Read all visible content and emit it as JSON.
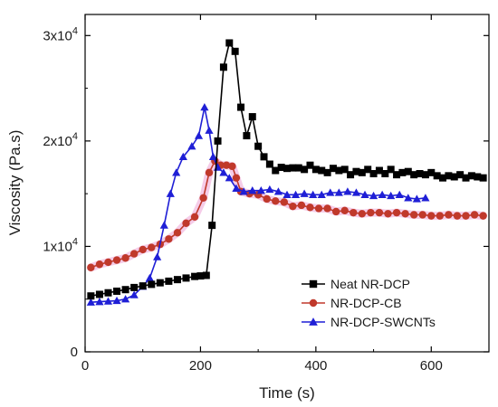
{
  "chart_data": {
    "type": "line",
    "xlabel": "Time (s)",
    "ylabel": "Viscosity (Pa.s)",
    "xlim": [
      0,
      700
    ],
    "ylim": [
      0,
      32000
    ],
    "x_ticks": [
      0,
      200,
      400,
      600
    ],
    "x_tick_labels": [
      "0",
      "200",
      "400",
      "600"
    ],
    "y_ticks": [
      0,
      10000,
      20000,
      30000
    ],
    "y_tick_labels": [
      {
        "base": "0",
        "exp": ""
      },
      {
        "base": "1x10",
        "exp": "4"
      },
      {
        "base": "2x10",
        "exp": "4"
      },
      {
        "base": "3x10",
        "exp": "4"
      }
    ],
    "grid": false,
    "legend_position": "bottom-right",
    "series": [
      {
        "name": "Neat NR-DCP",
        "color": "#000000",
        "marker": "square",
        "points": [
          [
            10,
            5300
          ],
          [
            25,
            5450
          ],
          [
            40,
            5600
          ],
          [
            55,
            5750
          ],
          [
            70,
            5900
          ],
          [
            85,
            6100
          ],
          [
            100,
            6250
          ],
          [
            115,
            6400
          ],
          [
            130,
            6550
          ],
          [
            145,
            6700
          ],
          [
            160,
            6850
          ],
          [
            175,
            7000
          ],
          [
            190,
            7150
          ],
          [
            200,
            7200
          ],
          [
            210,
            7250
          ],
          [
            220,
            12000
          ],
          [
            230,
            20000
          ],
          [
            240,
            27000
          ],
          [
            250,
            29300
          ],
          [
            260,
            28500
          ],
          [
            270,
            23200
          ],
          [
            280,
            20500
          ],
          [
            290,
            22300
          ],
          [
            300,
            19500
          ],
          [
            310,
            18500
          ],
          [
            320,
            17800
          ],
          [
            330,
            17200
          ],
          [
            340,
            17500
          ],
          [
            350,
            17400
          ],
          [
            360,
            17450
          ],
          [
            370,
            17450
          ],
          [
            380,
            17300
          ],
          [
            390,
            17700
          ],
          [
            400,
            17300
          ],
          [
            410,
            17200
          ],
          [
            420,
            17000
          ],
          [
            430,
            17400
          ],
          [
            440,
            17200
          ],
          [
            450,
            17300
          ],
          [
            460,
            16800
          ],
          [
            470,
            17100
          ],
          [
            480,
            17000
          ],
          [
            490,
            17300
          ],
          [
            500,
            16900
          ],
          [
            510,
            17200
          ],
          [
            520,
            16900
          ],
          [
            530,
            17300
          ],
          [
            540,
            16800
          ],
          [
            550,
            17000
          ],
          [
            560,
            17100
          ],
          [
            570,
            16800
          ],
          [
            580,
            16900
          ],
          [
            590,
            16800
          ],
          [
            600,
            17000
          ],
          [
            610,
            16700
          ],
          [
            620,
            16500
          ],
          [
            630,
            16700
          ],
          [
            640,
            16600
          ],
          [
            650,
            16800
          ],
          [
            660,
            16500
          ],
          [
            670,
            16700
          ],
          [
            680,
            16600
          ],
          [
            690,
            16500
          ]
        ]
      },
      {
        "name": "NR-DCP-CB",
        "color": "#c0392b",
        "marker": "circle",
        "points": [
          [
            10,
            8000
          ],
          [
            25,
            8300
          ],
          [
            40,
            8500
          ],
          [
            55,
            8700
          ],
          [
            70,
            8900
          ],
          [
            85,
            9300
          ],
          [
            100,
            9700
          ],
          [
            115,
            9900
          ],
          [
            130,
            10200
          ],
          [
            145,
            10700
          ],
          [
            160,
            11300
          ],
          [
            175,
            12200
          ],
          [
            190,
            12800
          ],
          [
            205,
            14600
          ],
          [
            215,
            17000
          ],
          [
            225,
            18100
          ],
          [
            235,
            17700
          ],
          [
            245,
            17700
          ],
          [
            255,
            17600
          ],
          [
            262,
            16500
          ],
          [
            270,
            15200
          ],
          [
            285,
            15000
          ],
          [
            300,
            14900
          ],
          [
            315,
            14500
          ],
          [
            330,
            14300
          ],
          [
            345,
            14200
          ],
          [
            360,
            13800
          ],
          [
            375,
            13900
          ],
          [
            390,
            13700
          ],
          [
            405,
            13600
          ],
          [
            420,
            13600
          ],
          [
            435,
            13300
          ],
          [
            450,
            13400
          ],
          [
            465,
            13200
          ],
          [
            480,
            13100
          ],
          [
            495,
            13200
          ],
          [
            510,
            13200
          ],
          [
            525,
            13100
          ],
          [
            540,
            13200
          ],
          [
            555,
            13100
          ],
          [
            570,
            13000
          ],
          [
            585,
            13000
          ],
          [
            600,
            12900
          ],
          [
            615,
            12900
          ],
          [
            630,
            13000
          ],
          [
            645,
            12900
          ],
          [
            660,
            12900
          ],
          [
            675,
            13000
          ],
          [
            690,
            12900
          ]
        ]
      },
      {
        "name": "NR-DCP-SWCNTs",
        "color": "#1f1fd6",
        "marker": "triangle",
        "points": [
          [
            10,
            4700
          ],
          [
            25,
            4750
          ],
          [
            40,
            4800
          ],
          [
            55,
            4850
          ],
          [
            70,
            5000
          ],
          [
            85,
            5400
          ],
          [
            100,
            6200
          ],
          [
            112,
            7000
          ],
          [
            125,
            9000
          ],
          [
            137,
            12000
          ],
          [
            148,
            15000
          ],
          [
            158,
            17000
          ],
          [
            170,
            18500
          ],
          [
            185,
            19500
          ],
          [
            197,
            20500
          ],
          [
            207,
            23200
          ],
          [
            215,
            21000
          ],
          [
            222,
            18500
          ],
          [
            230,
            17500
          ],
          [
            240,
            17000
          ],
          [
            250,
            16500
          ],
          [
            262,
            15500
          ],
          [
            275,
            15200
          ],
          [
            290,
            15300
          ],
          [
            305,
            15300
          ],
          [
            320,
            15400
          ],
          [
            335,
            15200
          ],
          [
            350,
            14900
          ],
          [
            365,
            14900
          ],
          [
            380,
            15000
          ],
          [
            395,
            14900
          ],
          [
            410,
            14900
          ],
          [
            425,
            15100
          ],
          [
            440,
            15100
          ],
          [
            455,
            15200
          ],
          [
            470,
            15100
          ],
          [
            485,
            14900
          ],
          [
            500,
            14800
          ],
          [
            515,
            14900
          ],
          [
            530,
            14800
          ],
          [
            545,
            14900
          ],
          [
            560,
            14600
          ],
          [
            575,
            14500
          ],
          [
            590,
            14600
          ]
        ]
      }
    ]
  }
}
